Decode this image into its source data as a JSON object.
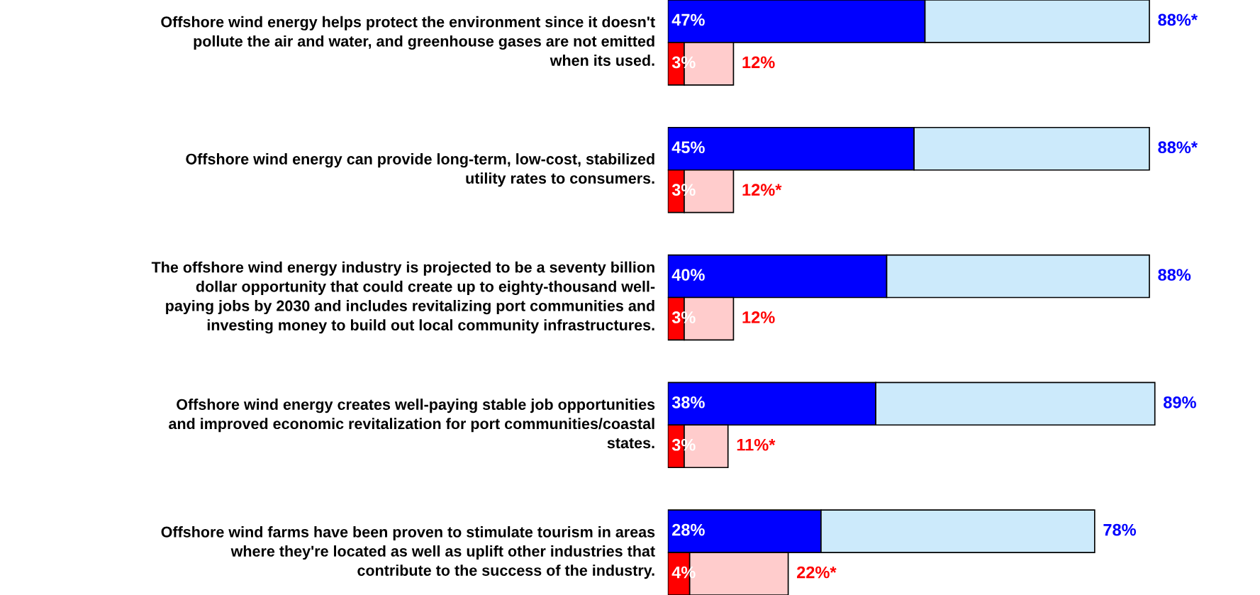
{
  "chart_data": {
    "type": "bar",
    "orientation": "horizontal",
    "stacked": true,
    "categories": [
      "Offshore wind energy helps protect the environment since it doesn't\npollute the air and water, and greenhouse gases are not emitted\nwhen its used.",
      null,
      null,
      "Offshore wind energy can provide long-term, low-cost, stabilized\nutility rates to consumers.",
      null,
      null,
      "The offshore wind energy industry is projected to be a seventy billion\ndollar opportunity that could create up to eighty-thousand well-\npaying jobs by 2030 and includes revitalizing port communities and\ninvesting money to build out local community infrastructures.",
      null,
      null,
      "Offshore wind energy creates well-paying stable job opportunities\nand improved economic revitalization for port communities/coastal\nstates.",
      null,
      null,
      "Offshore wind farms have been proven to stimulate tourism in areas\nwhere they're located as well as uplift other industries that\ncontribute to the success of the industry.",
      null
    ],
    "series": [
      {
        "values": [
          47,
          3,
          null,
          45,
          3,
          null,
          40,
          3,
          null,
          38,
          3,
          null,
          28,
          4
        ],
        "colors": [
          "#0000ff",
          "#ff0000",
          null,
          "#0000ff",
          "#ff0000",
          null,
          "#0000ff",
          "#ff0000",
          null,
          "#0000ff",
          "#ff0000",
          null,
          "#0000ff",
          "#ff0000"
        ],
        "value_labels": [
          "47%",
          "3%",
          null,
          "45%",
          "3%",
          null,
          "40%",
          "3%",
          null,
          "38%",
          "3%",
          null,
          "28%",
          "4%"
        ]
      },
      {
        "values": [
          41,
          9,
          null,
          43,
          9,
          null,
          48,
          9,
          null,
          51,
          8,
          null,
          50,
          18
        ],
        "colors": [
          "#cceafb",
          "#ffcccc",
          null,
          "#cceafb",
          "#ffcccc",
          null,
          "#cceafb",
          "#ffcccc",
          null,
          "#cceafb",
          "#ffcccc",
          null,
          "#cceafb",
          "#ffcccc"
        ]
      }
    ],
    "totals": [
      "88%*",
      "12%",
      null,
      "88%*",
      "12%*",
      null,
      "88%",
      "12%",
      null,
      "89%",
      "11%*",
      null,
      "78%",
      "22%*"
    ]
  }
}
